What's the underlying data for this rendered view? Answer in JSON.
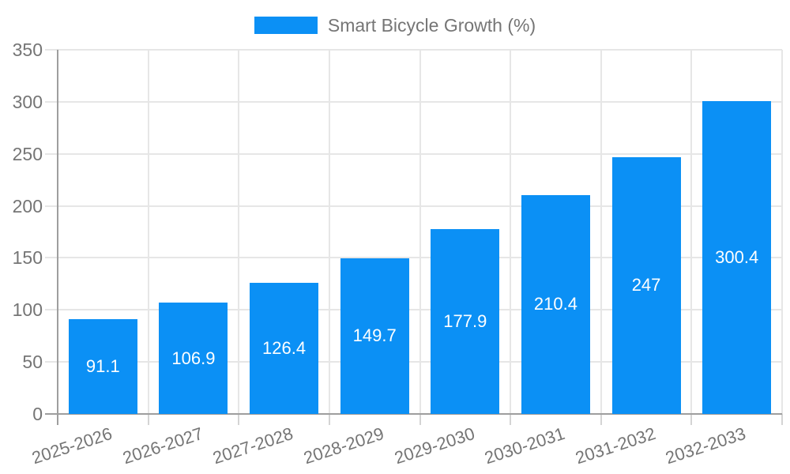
{
  "legend": {
    "position": "top-center"
  },
  "chart_data": {
    "type": "bar",
    "title": "",
    "categories": [
      "2025-2026",
      "2026-2027",
      "2027-2028",
      "2028-2029",
      "2029-2030",
      "2030-2031",
      "2031-2032",
      "2032-2033"
    ],
    "series": [
      {
        "name": "Smart Bicycle Growth (%)",
        "color": "#0b90f5",
        "values": [
          91.1,
          106.9,
          126.4,
          149.7,
          177.9,
          210.4,
          247,
          300.4
        ]
      }
    ],
    "value_labels": [
      "91.1",
      "106.9",
      "126.4",
      "149.7",
      "177.9",
      "210.4",
      "247",
      "300.4"
    ],
    "xlabel": "",
    "ylabel": "",
    "ylim": [
      0,
      350
    ],
    "yticks": [
      0,
      50,
      100,
      150,
      200,
      250,
      300,
      350
    ],
    "grid": true,
    "legend_position": "top-center",
    "colors": {
      "bar": "#0b90f5",
      "axis_line": "#9e9e9e",
      "gridline": "#e6e6e6",
      "tick": "#d4d4d4",
      "axis_text": "#757575",
      "value_text": "#ffffff",
      "background": "#ffffff"
    }
  }
}
